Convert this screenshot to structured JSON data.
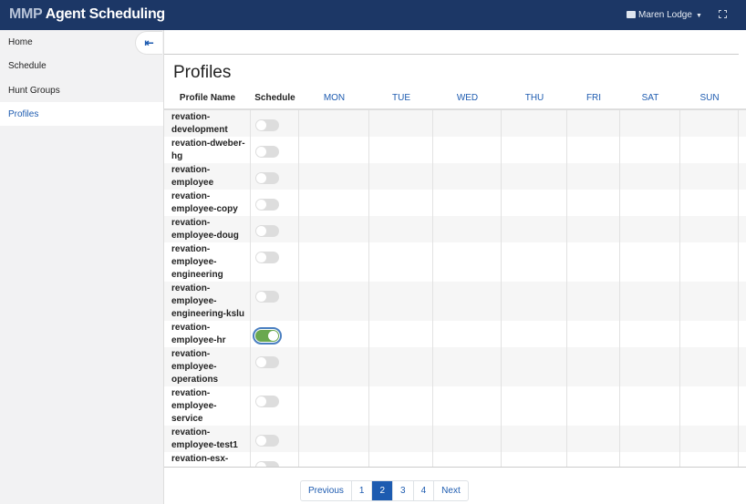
{
  "header": {
    "brand_prefix": "MMP",
    "brand_name": "Agent Scheduling",
    "user": "Maren Lodge",
    "user_icon": "id-card-icon",
    "fullscreen_icon": "expand-icon"
  },
  "colors": {
    "header": "#1c3766",
    "accent": "#1d5bb0",
    "toggle_on": "#6aa84f"
  },
  "sidebar": {
    "collapse_icon": "arrow-left-bar-icon",
    "items": [
      {
        "label": "Home"
      },
      {
        "label": "Schedule"
      },
      {
        "label": "Hunt Groups"
      },
      {
        "label": "Profiles",
        "active": true
      }
    ]
  },
  "page": {
    "title": "Profiles"
  },
  "table": {
    "columns": [
      "Profile Name",
      "Schedule",
      "MON",
      "TUE",
      "WED",
      "THU",
      "FRI",
      "SAT",
      "SUN"
    ],
    "rows": [
      {
        "name": "revation-development",
        "schedule": false
      },
      {
        "name": "revation-dweber-hg",
        "schedule": false
      },
      {
        "name": "revation-employee",
        "schedule": false
      },
      {
        "name": "revation-employee-copy",
        "schedule": false
      },
      {
        "name": "revation-employee-doug",
        "schedule": false
      },
      {
        "name": "revation-employee-engineering",
        "schedule": false
      },
      {
        "name": "revation-employee-engineering-kslu",
        "schedule": false
      },
      {
        "name": "revation-employee-hr",
        "schedule": true
      },
      {
        "name": "revation-employee-operations",
        "schedule": false
      },
      {
        "name": "revation-employee-service",
        "schedule": false
      },
      {
        "name": "revation-employee-test1",
        "schedule": false
      },
      {
        "name": "revation-esx-employee",
        "schedule": false
      }
    ]
  },
  "pagination": {
    "previous": "Previous",
    "pages": [
      "1",
      "2",
      "3",
      "4"
    ],
    "current": "2",
    "next": "Next"
  }
}
